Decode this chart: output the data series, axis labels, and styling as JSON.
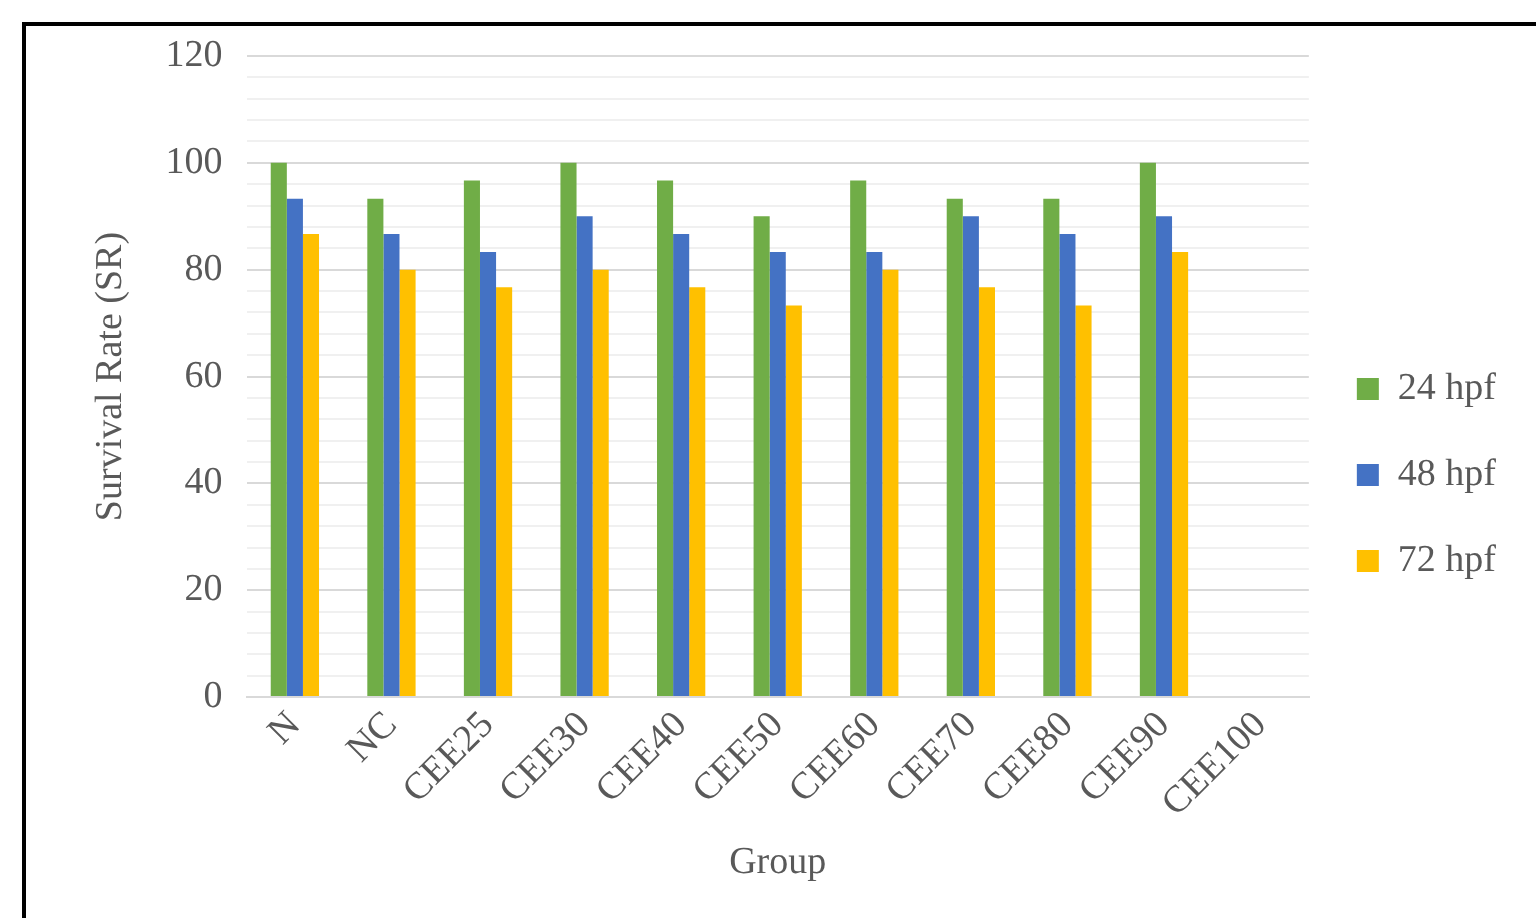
{
  "chart_data": {
    "type": "bar",
    "xlabel": "Group",
    "ylabel": "Survival Rate (SR)",
    "categories": [
      "N",
      "NC",
      "CEE25",
      "CEE30",
      "CEE40",
      "CEE50",
      "CEE60",
      "CEE70",
      "CEE80",
      "CEE90",
      "CEE100"
    ],
    "series": [
      {
        "name": "24 hpf",
        "color": "#70ad47",
        "values": [
          100,
          93.3,
          96.7,
          100,
          96.7,
          90,
          96.7,
          93.3,
          93.3,
          100,
          0
        ]
      },
      {
        "name": "48 hpf",
        "color": "#4472c4",
        "values": [
          93.3,
          86.7,
          83.3,
          90,
          86.7,
          83.3,
          83.3,
          90,
          86.7,
          90,
          0
        ]
      },
      {
        "name": "72 hpf",
        "color": "#ffc000",
        "values": [
          86.7,
          80,
          76.7,
          80,
          76.7,
          73.3,
          80,
          76.7,
          73.3,
          83.3,
          0
        ]
      }
    ],
    "ylim": [
      0,
      120
    ],
    "yticks": [
      0,
      {
        "value": 4,
        "label": null
      },
      {
        "value": 8,
        "label": null
      },
      {
        "value": 12,
        "label": null
      },
      {
        "value": 16,
        "label": null
      },
      20,
      {
        "value": 24,
        "label": null
      },
      {
        "value": 28,
        "label": null
      },
      {
        "value": 32,
        "label": null
      },
      {
        "value": 36,
        "label": null
      },
      40,
      {
        "value": 44,
        "label": null
      },
      {
        "value": 48,
        "label": null
      },
      {
        "value": 52,
        "label": null
      },
      {
        "value": 56,
        "label": null
      },
      60,
      {
        "value": 64,
        "label": null
      },
      {
        "value": 68,
        "label": null
      },
      {
        "value": 72,
        "label": null
      },
      {
        "value": 76,
        "label": null
      },
      80,
      {
        "value": 84,
        "label": null
      },
      {
        "value": 88,
        "label": null
      },
      {
        "value": 92,
        "label": null
      },
      {
        "value": 96,
        "label": null
      },
      100,
      {
        "value": 104,
        "label": null
      },
      {
        "value": 108,
        "label": null
      },
      {
        "value": 112,
        "label": null
      },
      {
        "value": 116,
        "label": null
      },
      120
    ],
    "grid": "y",
    "legend": "right"
  }
}
